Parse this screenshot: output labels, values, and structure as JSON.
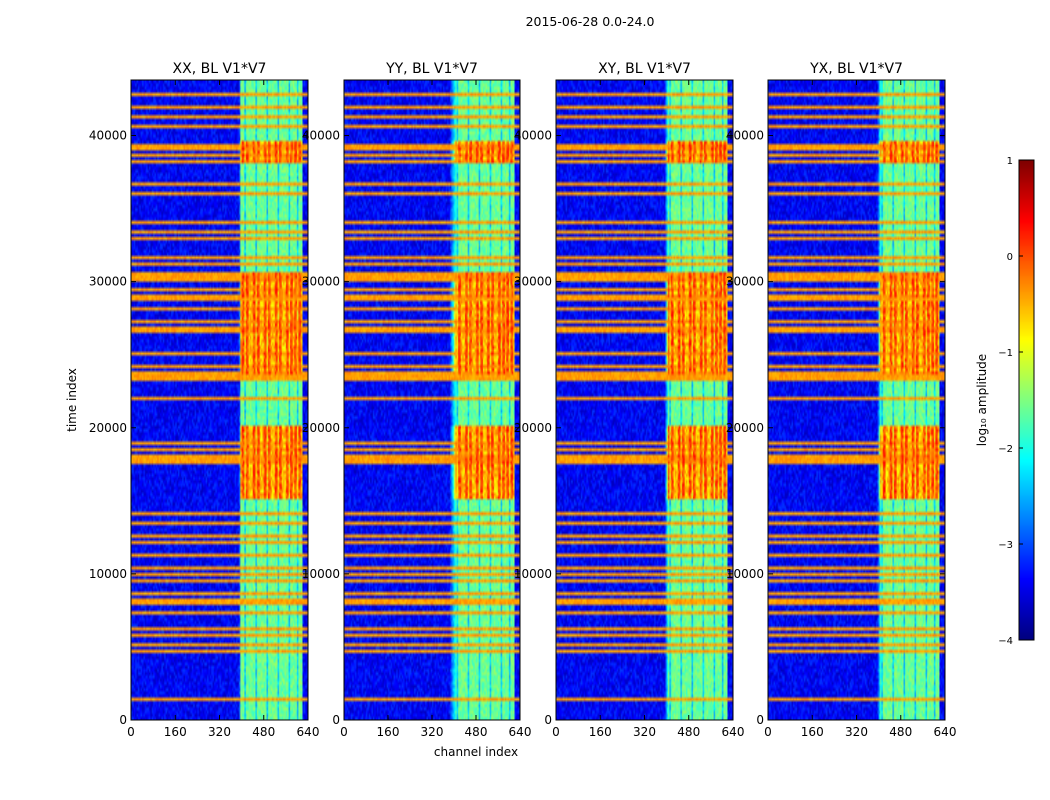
{
  "chart_data": {
    "type": "heatmap",
    "suptitle": "2015-06-28 0.0-24.0",
    "xlabel": "channel index",
    "ylabel": "time index",
    "xlim": [
      0,
      640
    ],
    "ylim": [
      0,
      43800
    ],
    "xticks": [
      0,
      160,
      320,
      480,
      640
    ],
    "yticks": [
      0,
      10000,
      20000,
      30000,
      40000
    ],
    "panels": [
      {
        "title": "XX, BL V1*V7",
        "band_start": 392,
        "fade": 6
      },
      {
        "title": "YY, BL V1*V7",
        "band_start": 395,
        "fade": 28
      },
      {
        "title": "XY, BL V1*V7",
        "band_start": 398,
        "fade": 14
      },
      {
        "title": "YX, BL V1*V7",
        "band_start": 400,
        "fade": 14
      }
    ],
    "band_channel_range": [
      392,
      615
    ],
    "hot_channels": [
      410,
      450,
      490,
      530,
      570,
      600
    ],
    "bright_time_ranges": [
      [
        15000,
        20000
      ],
      [
        23500,
        28500
      ],
      [
        38000,
        39500
      ],
      [
        28800,
        30500
      ]
    ],
    "rfi_time_indices": [
      1300,
      4700,
      5000,
      5800,
      6200,
      7200,
      7800,
      8100,
      8500,
      9500,
      9900,
      10300,
      11200,
      12000,
      12500,
      13300,
      14000,
      17500,
      17700,
      18000,
      18500,
      18800,
      22000,
      23200,
      23400,
      23600,
      24000,
      25000,
      26500,
      26700,
      27200,
      28000,
      28600,
      29000,
      29300,
      30000,
      30200,
      30500,
      31200,
      31500,
      32800,
      33200,
      34000,
      36000,
      36500,
      38200,
      38500,
      38900,
      39200,
      40500,
      41200,
      41800,
      42800
    ],
    "colorbar": {
      "label": "log₁₀ amplitude",
      "range": [
        -4,
        1
      ],
      "ticks": [
        1,
        0,
        -1,
        -2,
        -3,
        -4
      ],
      "tick_labels": [
        "1",
        "0",
        "−1",
        "−2",
        "−3",
        "−4"
      ],
      "colormap": "jet"
    }
  }
}
